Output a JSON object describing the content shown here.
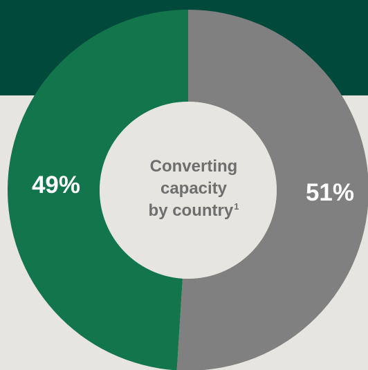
{
  "chart_data": {
    "type": "pie",
    "title": "Converting capacity by country",
    "title_lines": [
      "Converting",
      "capacity",
      "by country"
    ],
    "footnote_marker": "1",
    "slices": [
      {
        "label_text": "49%",
        "value": 49,
        "color": "#13754b"
      },
      {
        "label_text": "51%",
        "value": 51,
        "color": "#808080"
      }
    ]
  },
  "colors": {
    "header_band": "#014a3b",
    "background": "#e6e5e0",
    "center_hole": "#e6e5e0",
    "center_text": "#6e6e6e",
    "value_text": "#ffffff"
  }
}
